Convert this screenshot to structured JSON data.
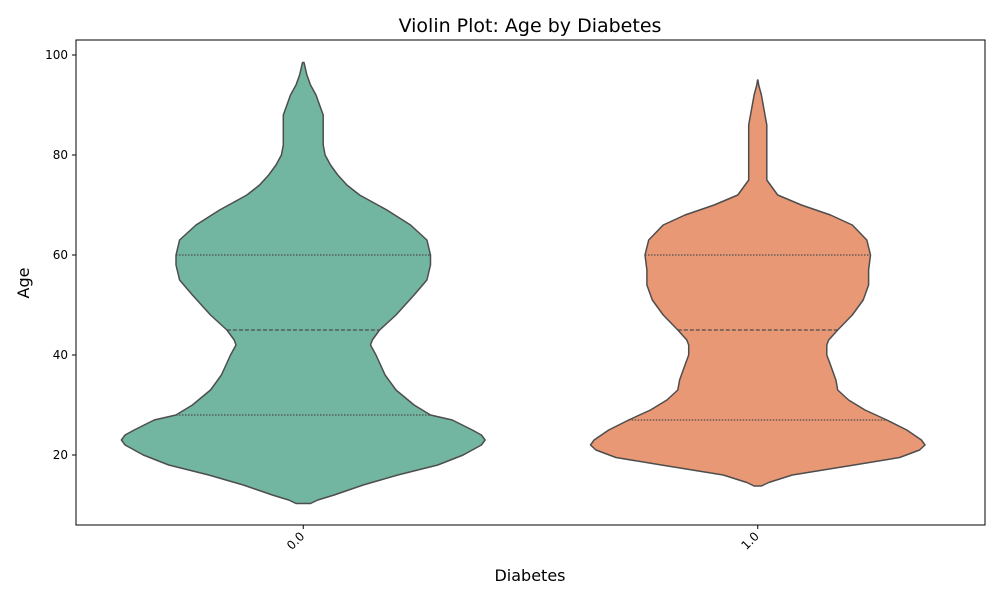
{
  "chart_data": {
    "type": "violin",
    "title": "Violin Plot: Age by Diabetes",
    "xlabel": "Diabetes",
    "ylabel": "Age",
    "ylim": [
      6,
      103
    ],
    "yticks": [
      20,
      40,
      60,
      80,
      100
    ],
    "grid": false,
    "categories": [
      "0.0",
      "1.0"
    ],
    "colors": [
      "#72b5a0",
      "#e99875"
    ],
    "series": [
      {
        "category": "0.0",
        "quartiles": [
          28,
          45,
          60
        ],
        "range": [
          10.3,
          98.5
        ],
        "density": [
          [
            10.3,
            0.04
          ],
          [
            11,
            0.08
          ],
          [
            12,
            0.17
          ],
          [
            14,
            0.33
          ],
          [
            16,
            0.52
          ],
          [
            18,
            0.74
          ],
          [
            20,
            0.88
          ],
          [
            22,
            0.98
          ],
          [
            23,
            1.0
          ],
          [
            24,
            0.98
          ],
          [
            25,
            0.93
          ],
          [
            27,
            0.82
          ],
          [
            28,
            0.7
          ],
          [
            30,
            0.61
          ],
          [
            33,
            0.51
          ],
          [
            36,
            0.45
          ],
          [
            40,
            0.4
          ],
          [
            42,
            0.37
          ],
          [
            43,
            0.38
          ],
          [
            45,
            0.42
          ],
          [
            48,
            0.51
          ],
          [
            52,
            0.61
          ],
          [
            55,
            0.68
          ],
          [
            58,
            0.7
          ],
          [
            60,
            0.7
          ],
          [
            63,
            0.68
          ],
          [
            66,
            0.59
          ],
          [
            69,
            0.46
          ],
          [
            72,
            0.31
          ],
          [
            74,
            0.24
          ],
          [
            76,
            0.19
          ],
          [
            78,
            0.15
          ],
          [
            80,
            0.12
          ],
          [
            82,
            0.11
          ],
          [
            85,
            0.11
          ],
          [
            88,
            0.11
          ],
          [
            90,
            0.09
          ],
          [
            92,
            0.07
          ],
          [
            94,
            0.04
          ],
          [
            96,
            0.02
          ],
          [
            98.5,
            0.004
          ]
        ]
      },
      {
        "category": "1.0",
        "quartiles": [
          27,
          45,
          60
        ],
        "range": [
          13.8,
          95
        ],
        "density": [
          [
            13.8,
            0.02
          ],
          [
            14.5,
            0.06
          ],
          [
            16,
            0.19
          ],
          [
            18,
            0.53
          ],
          [
            19.5,
            0.78
          ],
          [
            21,
            0.89
          ],
          [
            22,
            0.92
          ],
          [
            23,
            0.9
          ],
          [
            25,
            0.82
          ],
          [
            27,
            0.71
          ],
          [
            29,
            0.59
          ],
          [
            31,
            0.5
          ],
          [
            33,
            0.44
          ],
          [
            35,
            0.43
          ],
          [
            38,
            0.4
          ],
          [
            40,
            0.38
          ],
          [
            42,
            0.38
          ],
          [
            43,
            0.39
          ],
          [
            45,
            0.44
          ],
          [
            48,
            0.52
          ],
          [
            51,
            0.58
          ],
          [
            54,
            0.61
          ],
          [
            57,
            0.61
          ],
          [
            60,
            0.62
          ],
          [
            63,
            0.6
          ],
          [
            66,
            0.52
          ],
          [
            68,
            0.4
          ],
          [
            70,
            0.24
          ],
          [
            72,
            0.11
          ],
          [
            75,
            0.05
          ],
          [
            78,
            0.05
          ],
          [
            80,
            0.05
          ],
          [
            82,
            0.05
          ],
          [
            84,
            0.05
          ],
          [
            86,
            0.05
          ],
          [
            88,
            0.04
          ],
          [
            90,
            0.03
          ],
          [
            92,
            0.02
          ],
          [
            94,
            0.005
          ],
          [
            95,
            0.001
          ]
        ]
      }
    ]
  }
}
